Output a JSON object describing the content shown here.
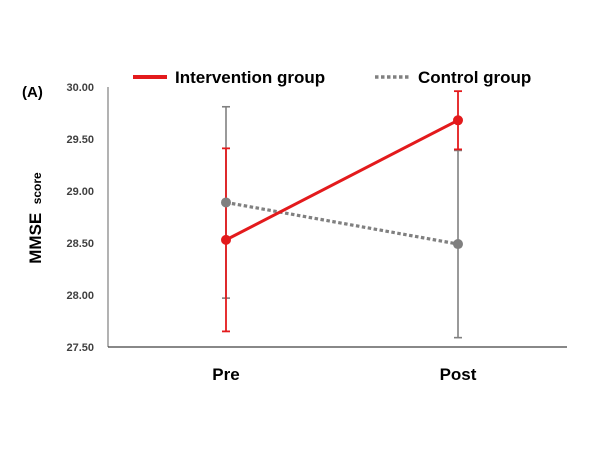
{
  "chart_data": {
    "type": "line",
    "panel_label": "(A)",
    "ylabel": {
      "main": "MMSE",
      "sub": "score"
    },
    "xlabel": "",
    "categories": [
      "Pre",
      "Post"
    ],
    "ylim": [
      27.5,
      30.0
    ],
    "yticks": [
      "27.50",
      "28.00",
      "28.50",
      "29.00",
      "29.50",
      "30.00"
    ],
    "grid": false,
    "legend_position": "top",
    "series": [
      {
        "name": "Intervention group",
        "values": [
          28.53,
          29.68
        ],
        "error_low": [
          27.65,
          29.4
        ],
        "error_high": [
          29.41,
          29.96
        ],
        "color": "#e31a1c",
        "line_style": "solid"
      },
      {
        "name": "Control group",
        "values": [
          28.89,
          28.49
        ],
        "error_low": [
          27.97,
          27.59
        ],
        "error_high": [
          29.81,
          29.39
        ],
        "color": "#808080",
        "line_style": "dotted"
      }
    ]
  }
}
